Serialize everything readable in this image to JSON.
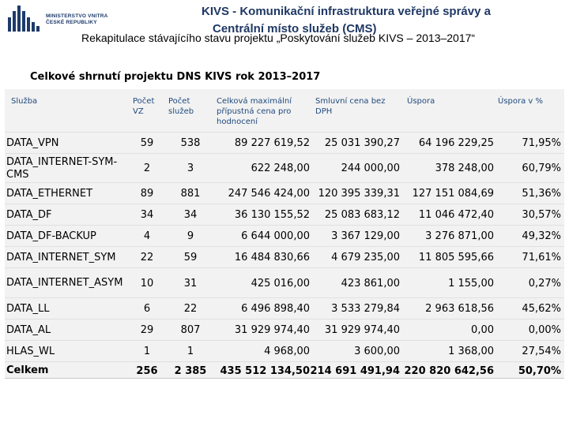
{
  "header": {
    "ministry_line1": "MINISTERSTVO VNITRA",
    "ministry_line2": "ČESKÉ REPUBLIKY",
    "title_line1": "KIVS - Komunikační infrastruktura veřejné správy a",
    "title_line2": "Centrální místo služeb (CMS)",
    "subtitle": "Rekapitulace stávajícího stavu projektu „Poskytování služeb KIVS – 2013–2017“"
  },
  "summary_title": "Celkové shrnutí projektu DNS KIVS rok 2013–2017",
  "table": {
    "headers": {
      "service": "Služba",
      "vz_count": "Počet VZ",
      "service_count": "Počet služeb",
      "max_price": "Celková maximální přípustná cena pro hodnocení",
      "contract_price": "Smluvní cena bez DPH",
      "savings": "Úspora",
      "savings_pct": "Úspora v %"
    },
    "rows": [
      {
        "service": "DATA_VPN",
        "vz": "59",
        "services": "538",
        "max": "89 227 619,52",
        "contract": "25 031 390,27",
        "savings": "64 196 229,25",
        "pct": "71,95%"
      },
      {
        "service": "DATA_INTERNET-SYM-CMS",
        "vz": "2",
        "services": "3",
        "max": "622 248,00",
        "contract": "244 000,00",
        "savings": "378 248,00",
        "pct": "60,79%"
      },
      {
        "service": "DATA_ETHERNET",
        "vz": "89",
        "services": "881",
        "max": "247 546 424,00",
        "contract": "120 395 339,31",
        "savings": "127 151 084,69",
        "pct": "51,36%"
      },
      {
        "service": "DATA_DF",
        "vz": "34",
        "services": "34",
        "max": "36 130 155,52",
        "contract": "25 083 683,12",
        "savings": "11 046 472,40",
        "pct": "30,57%"
      },
      {
        "service": "DATA_DF-BACKUP",
        "vz": "4",
        "services": "9",
        "max": "6 644 000,00",
        "contract": "3 367 129,00",
        "savings": "3 276 871,00",
        "pct": "49,32%"
      },
      {
        "service": "DATA_INTERNET_SYM",
        "vz": "22",
        "services": "59",
        "max": "16 484 830,66",
        "contract": "4 679 235,00",
        "savings": "11 805 595,66",
        "pct": "71,61%"
      },
      {
        "service": "DATA_INTERNET_ASYM",
        "vz": "10",
        "services": "31",
        "max": "425 016,00",
        "contract": "423 861,00",
        "savings": "1 155,00",
        "pct": "0,27%"
      },
      {
        "service": "DATA_LL",
        "vz": "6",
        "services": "22",
        "max": "6 496 898,40",
        "contract": "3 533 279,84",
        "savings": "2 963 618,56",
        "pct": "45,62%"
      },
      {
        "service": "DATA_AL",
        "vz": "29",
        "services": "807",
        "max": "31 929 974,40",
        "contract": "31 929 974,40",
        "savings": "0,00",
        "pct": "0,00%"
      },
      {
        "service": "HLAS_WL",
        "vz": "1",
        "services": "1",
        "max": "4 968,00",
        "contract": "3 600,00",
        "savings": "1 368,00",
        "pct": "27,54%"
      }
    ],
    "total": {
      "service": "Celkem",
      "vz": "256",
      "services": "2 385",
      "max": "435 512 134,50",
      "contract": "214 691 491,94",
      "savings": "220 820 642,56",
      "pct": "50,70%"
    }
  }
}
